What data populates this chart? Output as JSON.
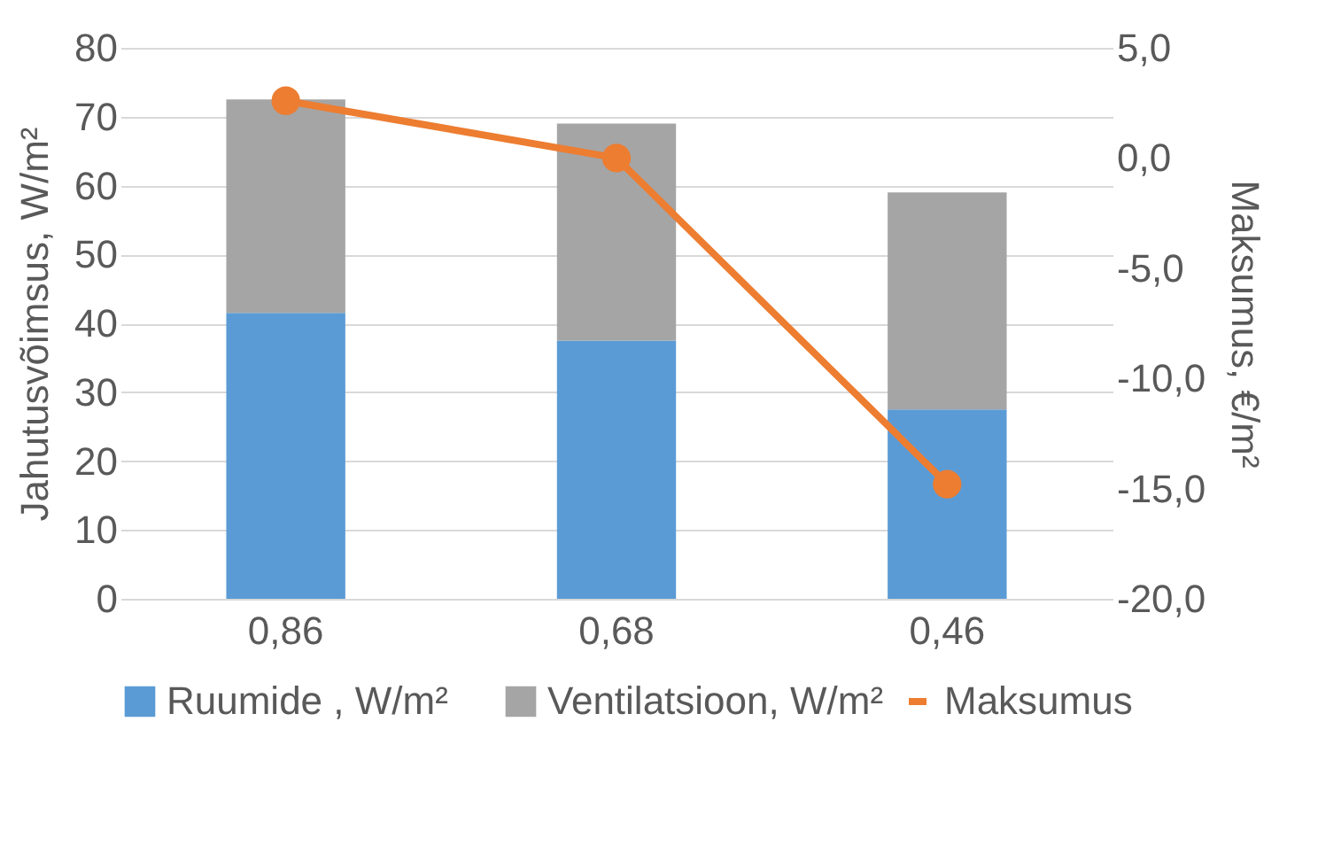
{
  "chart_data": {
    "type": "bar",
    "stacked": true,
    "categories": [
      "0,86",
      "0,68",
      "0,46"
    ],
    "ylabel": "Jahutusvõimsus, W/m²",
    "y2label": "Maksumus, €/m²",
    "ylim": [
      0,
      80
    ],
    "yticks": [
      0,
      10,
      20,
      30,
      40,
      50,
      60,
      70,
      80
    ],
    "y2lim": [
      -20,
      5
    ],
    "y2ticks": [
      {
        "value": -20,
        "label": "-20,0"
      },
      {
        "value": -15,
        "label": "-15,0"
      },
      {
        "value": -10,
        "label": "-10,0"
      },
      {
        "value": -5,
        "label": "-5,0"
      },
      {
        "value": 0,
        "label": "0,0"
      },
      {
        "value": 5,
        "label": "5,0"
      }
    ],
    "grid": "y",
    "legend": "bottom",
    "marker": "circle",
    "series": [
      {
        "name": "Ruumide , W/m²",
        "color": "#5b9bd5",
        "values": [
          41.5,
          37.5,
          27.5
        ]
      },
      {
        "name": "Ventilatsioon, W/m²",
        "color": "#a5a5a5",
        "values": [
          31,
          31.5,
          31.5
        ]
      },
      {
        "name": "Maksumus",
        "type": "line",
        "axis": "y2",
        "color": "#ed7d31",
        "values": [
          2.6,
          0,
          -14.8
        ]
      }
    ]
  }
}
